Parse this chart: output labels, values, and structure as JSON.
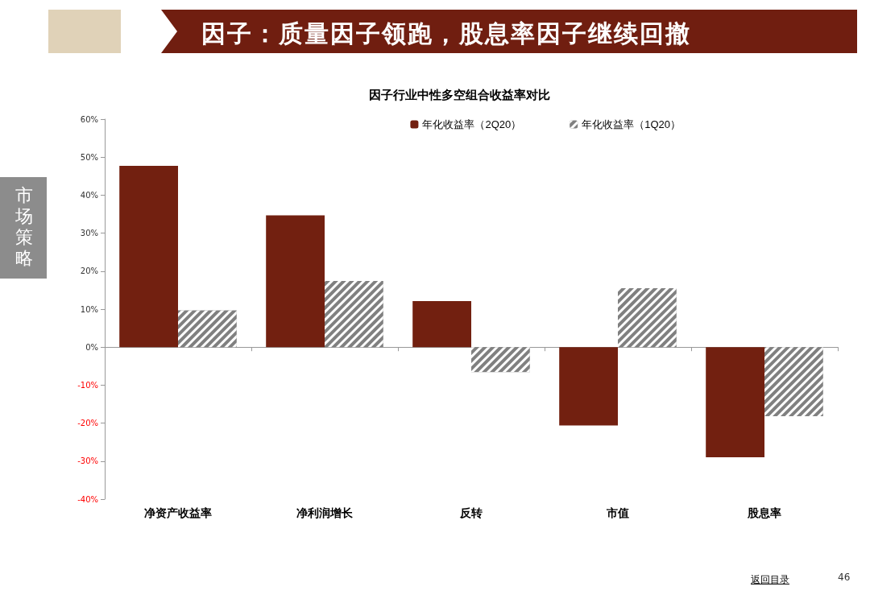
{
  "chart_data": {
    "type": "bar",
    "title": "因子：质量因子领跑，股息率因子继续回撤",
    "subtitle": "因子行业中性多空组合收益率对比",
    "categories": [
      "净资产收益率",
      "净利润增长",
      "反转",
      "市值",
      "股息率"
    ],
    "series": [
      {
        "name": "年化收益率（2Q20）",
        "color": "#722010",
        "values": [
          47.7,
          34.7,
          12.1,
          -20.6,
          -29.0
        ]
      },
      {
        "name": "年化收益率（1Q20）",
        "color": "#808080",
        "values": [
          9.7,
          17.4,
          -6.6,
          15.5,
          -18.2
        ]
      }
    ],
    "ylim": [
      -40,
      60
    ],
    "yticks": [
      {
        "value": -40,
        "label": "-40%"
      },
      {
        "value": -30,
        "label": "-30%"
      },
      {
        "value": -20,
        "label": "-20%"
      },
      {
        "value": -10,
        "label": "-10%"
      },
      {
        "value": 0,
        "label": "0%"
      },
      {
        "value": 10,
        "label": "10%"
      },
      {
        "value": 20,
        "label": "20%"
      },
      {
        "value": 30,
        "label": "30%"
      },
      {
        "value": 40,
        "label": "40%"
      },
      {
        "value": 50,
        "label": "50%"
      },
      {
        "value": 60,
        "label": "60%"
      }
    ],
    "legend": "top right",
    "annotations": [
      "市场策略",
      "返回目录",
      "46"
    ]
  }
}
